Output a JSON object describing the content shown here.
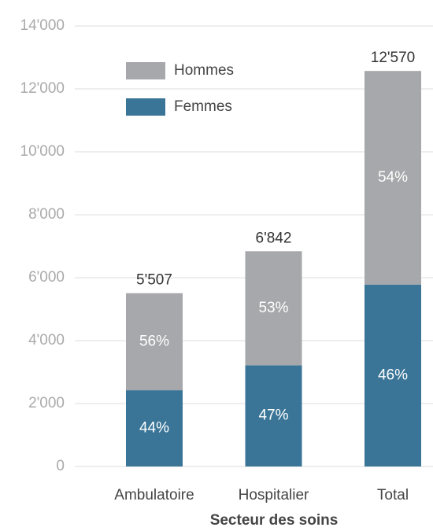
{
  "chart_data": {
    "type": "stacked_bar",
    "x_label": "Secteur des soins",
    "categories": [
      "Ambulatoire",
      "Hospitalier",
      "Total"
    ],
    "series": [
      {
        "name": "Femmes",
        "color": "#3a7597",
        "values": [
          2423,
          3216,
          5782
        ],
        "value_labels": [
          "44%",
          "47%",
          "46%"
        ]
      },
      {
        "name": "Hommes",
        "color": "#a7a8ab",
        "values": [
          3084,
          3626,
          6788
        ],
        "value_labels": [
          "56%",
          "53%",
          "54%"
        ]
      }
    ],
    "totals": [
      {
        "value": 5507,
        "label": "5'507"
      },
      {
        "value": 6842,
        "label": "6'842"
      },
      {
        "value": 12570,
        "label": "12'570"
      }
    ],
    "ylim": [
      0,
      14000
    ],
    "yticks": [
      0,
      {
        "value": 2000,
        "label": "2'000"
      },
      {
        "value": 4000,
        "label": "4'000"
      },
      {
        "value": 6000,
        "label": "6'000"
      },
      {
        "value": 8000,
        "label": "8'000"
      },
      {
        "value": 10000,
        "label": "10'000"
      },
      {
        "value": 12000,
        "label": "12'000"
      },
      {
        "value": 14000,
        "label": "14'000"
      }
    ],
    "grid": true,
    "legend": "upper left"
  }
}
